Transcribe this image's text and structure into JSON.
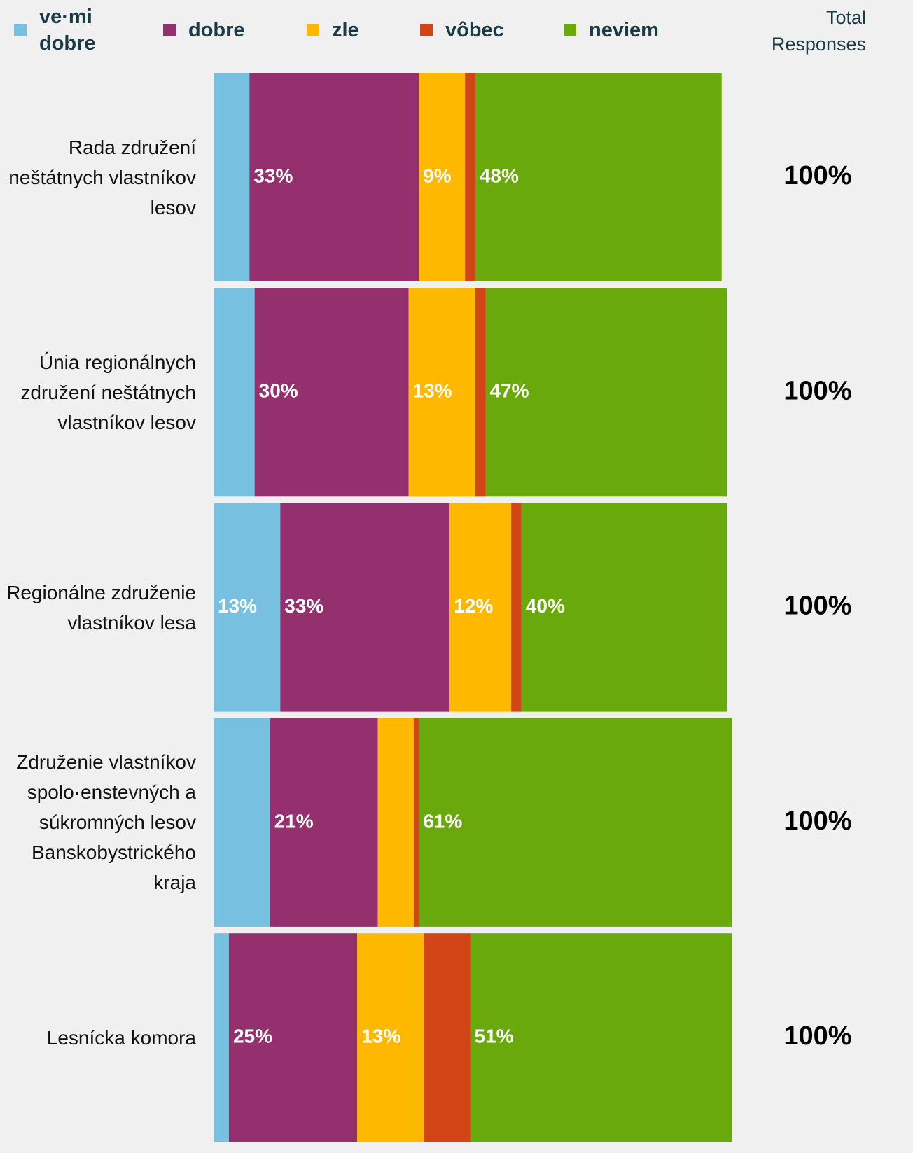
{
  "chart_data": {
    "type": "bar",
    "orientation": "horizontal",
    "stacked": true,
    "categories": [
      "Rada združení neštátnych vlastníkov lesov",
      "Únia regionálnych združení neštátnych vlastníkov lesov",
      "Regionálne združenie vlastníkov lesa",
      "Združenie vlastníkov spolo·enstevných a súkromných lesov Banskobystrického kraja",
      "Lesnícka komora"
    ],
    "series": [
      {
        "name": "ve·mi dobre",
        "color": "#77c0e0",
        "values": [
          7,
          8,
          13,
          11,
          3
        ],
        "value_labels": [
          null,
          null,
          "13%",
          null,
          null
        ]
      },
      {
        "name": "dobre",
        "color": "#93306d",
        "values": [
          33,
          30,
          33,
          21,
          25
        ],
        "value_labels": [
          "33%",
          "30%",
          "33%",
          "21%",
          "25%"
        ]
      },
      {
        "name": "zle",
        "color": "#ffb800",
        "values": [
          9,
          13,
          12,
          7,
          13
        ],
        "value_labels": [
          "9%",
          "13%",
          "12%",
          null,
          "13%"
        ]
      },
      {
        "name": "vôbec",
        "color": "#d24516",
        "values": [
          2,
          2,
          2,
          1,
          9
        ],
        "value_labels": [
          null,
          null,
          null,
          null,
          null
        ]
      },
      {
        "name": "neviem",
        "color": "#69a90b",
        "values": [
          48,
          47,
          40,
          61,
          51
        ],
        "value_labels": [
          "48%",
          "47%",
          "40%",
          "61%",
          "51%"
        ]
      }
    ],
    "xlim": [
      0,
      100
    ],
    "totals_title": "Total Responses",
    "totals": [
      100,
      100,
      100,
      100,
      100
    ],
    "total_labels": [
      "100%",
      "100%",
      "100%",
      "100%",
      "100%"
    ]
  }
}
